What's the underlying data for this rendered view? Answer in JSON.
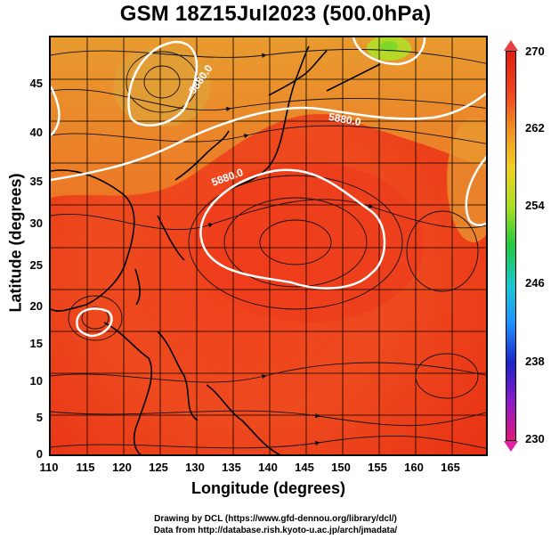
{
  "title": "GSM 18Z15Jul2023 (500.0hPa)",
  "xaxis": {
    "label": "Longitude (degrees)",
    "ticks": [
      "110",
      "115",
      "120",
      "125",
      "130",
      "135",
      "140",
      "145",
      "150",
      "155",
      "160",
      "165"
    ],
    "range": [
      110,
      170
    ]
  },
  "yaxis": {
    "label": "Latitude  (degrees)",
    "ticks": [
      "0",
      "5",
      "10",
      "15",
      "20",
      "25",
      "30",
      "35",
      "40",
      "45"
    ],
    "range": [
      0,
      50
    ]
  },
  "colorbar": {
    "ticks": [
      "270",
      "262",
      "254",
      "246",
      "238",
      "230"
    ],
    "range": [
      230,
      270
    ],
    "colors": [
      "#e0187a",
      "#8a1cc8",
      "#1c24c8",
      "#1e90ff",
      "#18c8d0",
      "#20c840",
      "#a8e020",
      "#f0d020",
      "#f09020",
      "#f04020",
      "#e02010"
    ]
  },
  "contours": [
    {
      "label": "5880.0"
    },
    {
      "label": "5880.0"
    },
    {
      "label": "5880.0"
    }
  ],
  "credits": {
    "line1": "Drawing by DCL (https://www.gfd-dennou.org/library/dcl/)",
    "line2": "Data from http://database.rish.kyoto-u.ac.jp/arch/jmadata/"
  }
}
